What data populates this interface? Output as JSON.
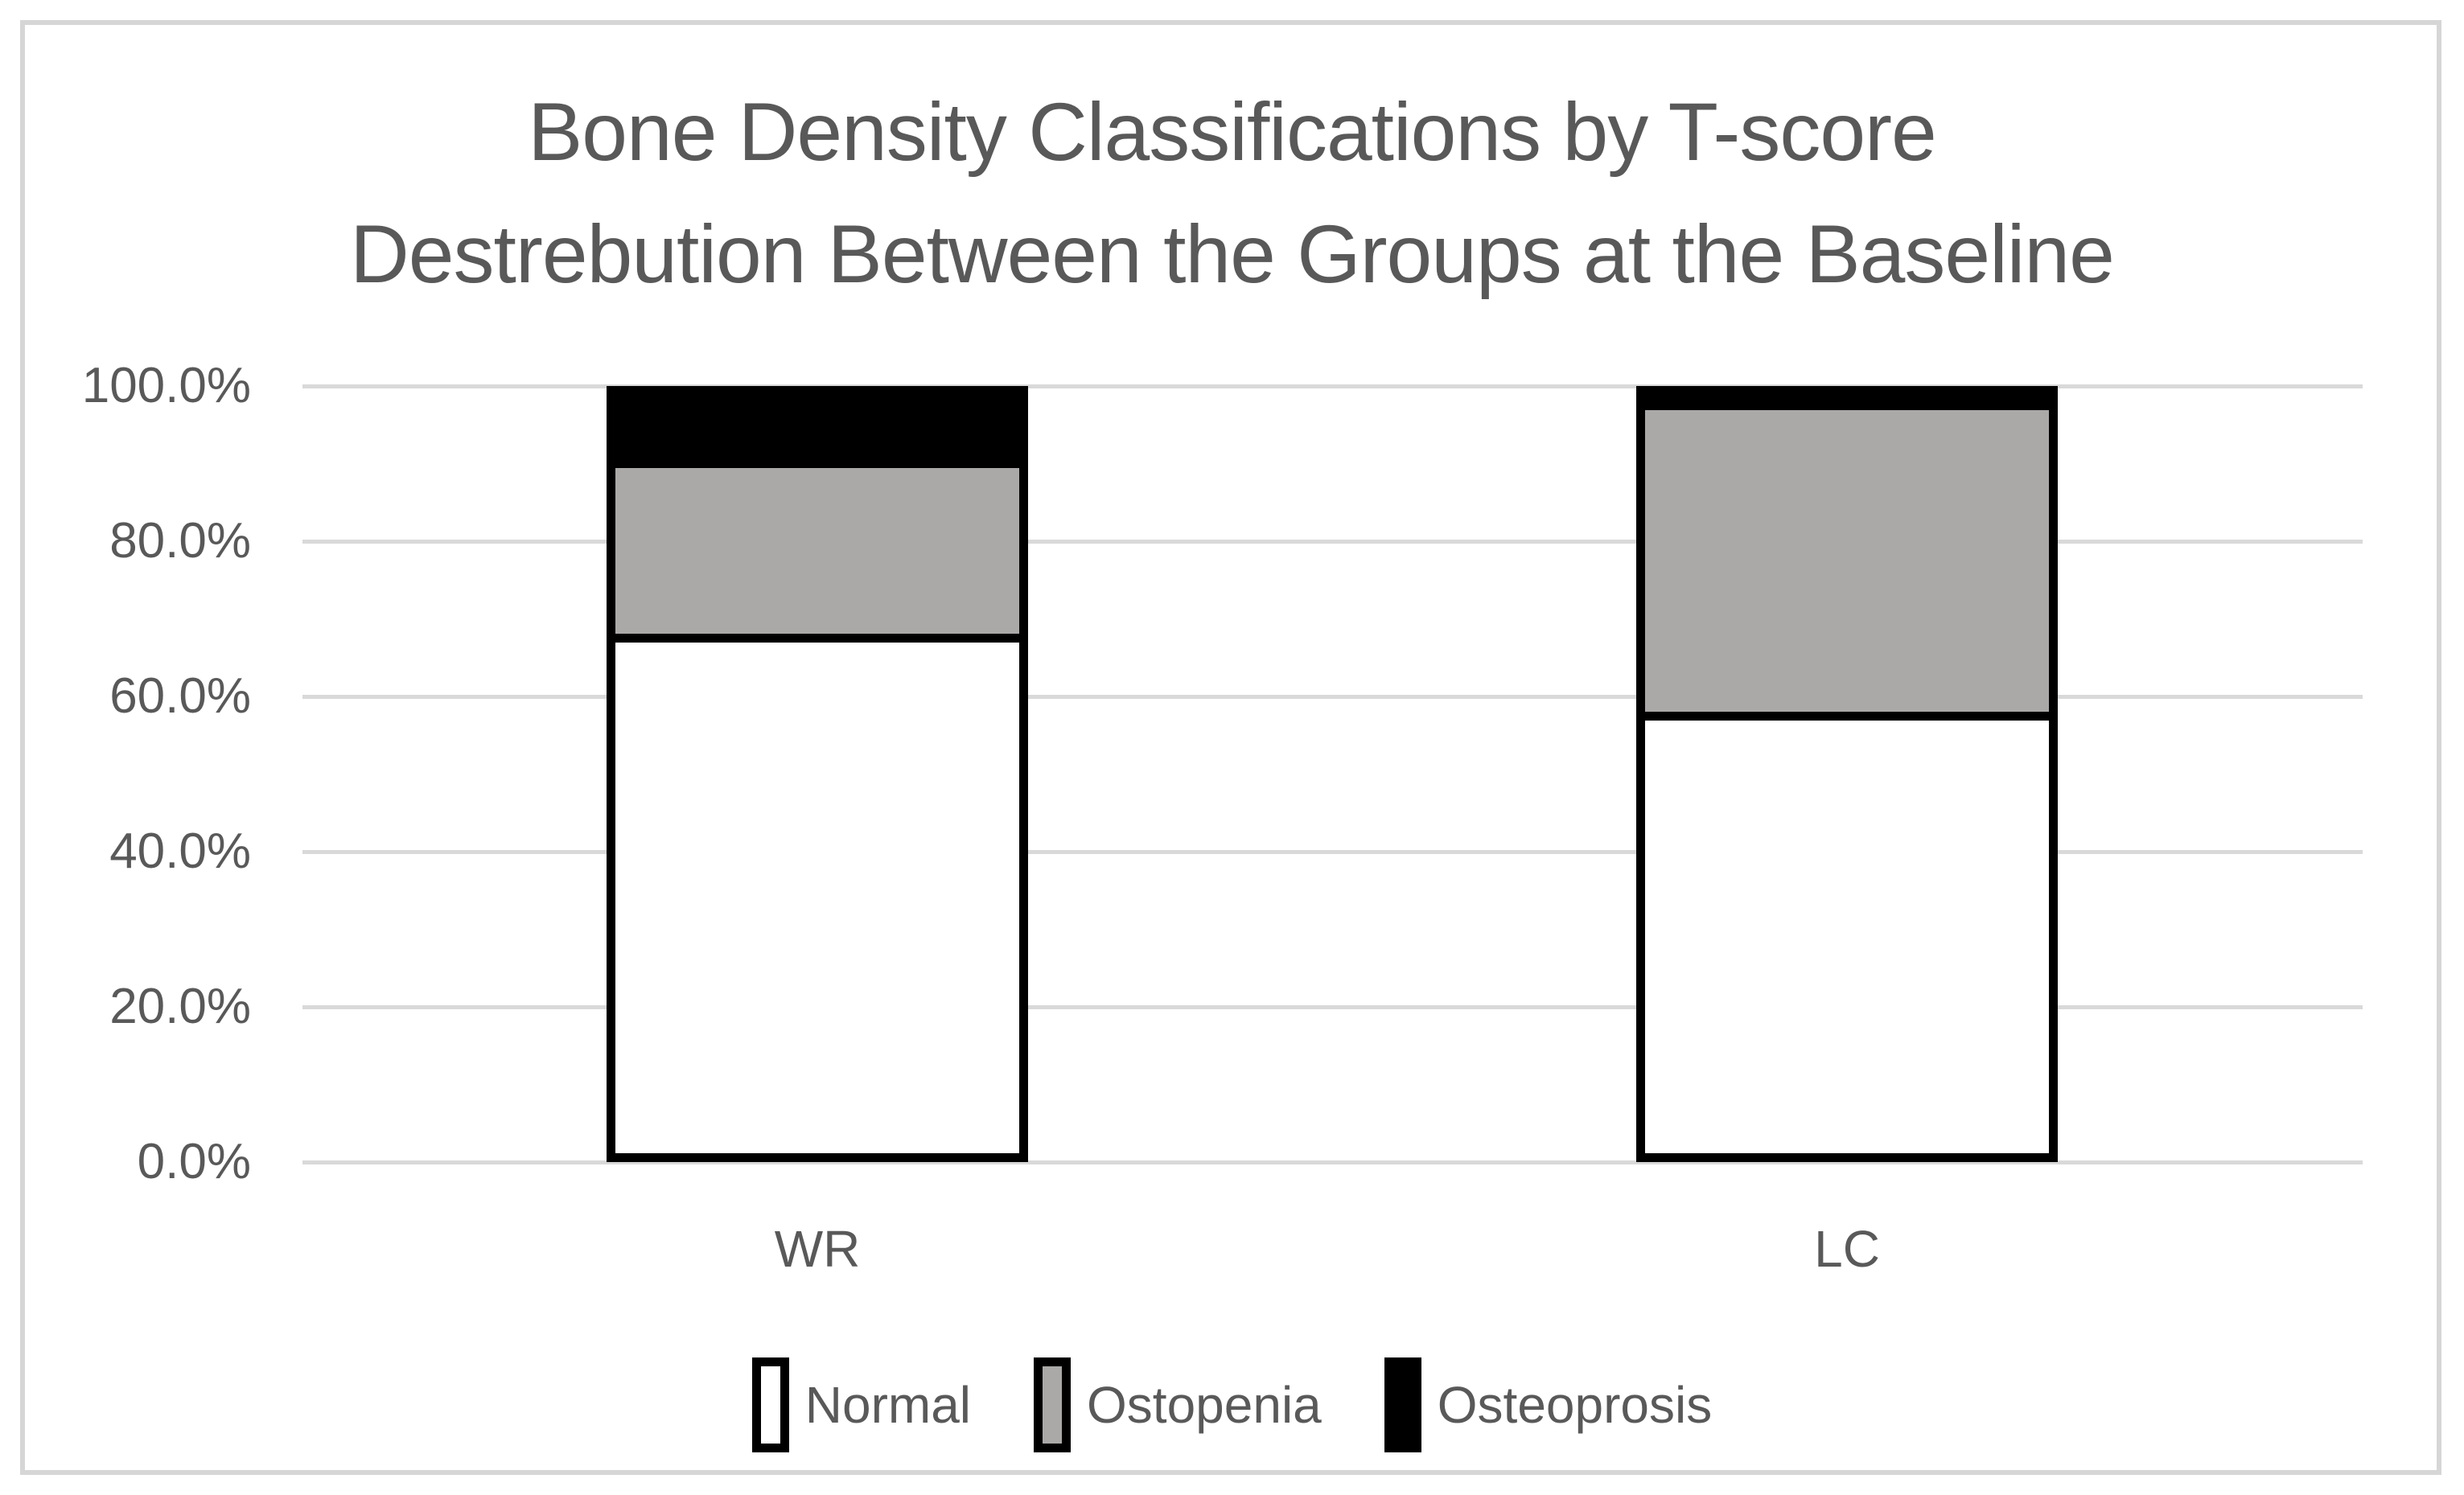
{
  "figure": {
    "background": "#FFFFFF",
    "border_color": "#D6D6D6"
  },
  "chart_data": {
    "type": "bar",
    "stacked": true,
    "title": "Bone Density Classifications by T-score Destrebution Between the Groups at the Baseline",
    "title_lines": [
      "Bone Density Classifications by T-score",
      "Destrebution Between the Groups at the Baseline"
    ],
    "categories": [
      "WR",
      "LC"
    ],
    "series": [
      {
        "name": "Normal",
        "color": "#FFFFFF",
        "values": [
          67.5,
          57.5
        ]
      },
      {
        "name": "Ostopenia",
        "color": "#ABA8A8",
        "values": [
          22.5,
          40.0
        ]
      },
      {
        "name": "Osteoprosis",
        "color": "#000000",
        "values": [
          10.0,
          2.5
        ]
      }
    ],
    "ylim": [
      0,
      100
    ],
    "ytick_labels": [
      "0.0%",
      "20.0%",
      "40.0%",
      "60.0%",
      "80.0%",
      "100.0%"
    ],
    "grid": true,
    "gridline_color": "#D9D9D9",
    "bar_border_color": "#000000",
    "text_color": "#595959",
    "legend_position": "bottom",
    "xlabel": "",
    "ylabel": ""
  }
}
